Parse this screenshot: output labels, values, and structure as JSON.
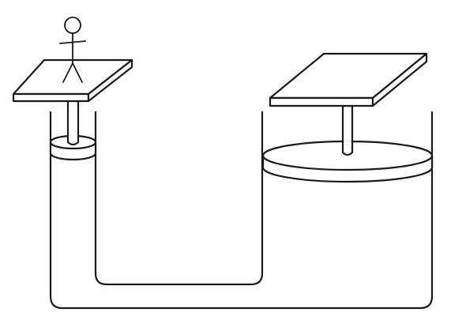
{
  "diagram": {
    "kind": "hydraulic-press",
    "components": {
      "small_cylinder": {
        "icon": "small-cylinder",
        "has_person_on_platform": true
      },
      "large_cylinder": {
        "icon": "large-cylinder",
        "has_person_on_platform": false
      },
      "connecting_tube": {
        "icon": "u-tube"
      },
      "person": {
        "icon": "stick-figure-icon"
      }
    },
    "colors": {
      "stroke": "#1a1a1a",
      "fill": "#ffffff",
      "background": "#ffffff"
    }
  }
}
